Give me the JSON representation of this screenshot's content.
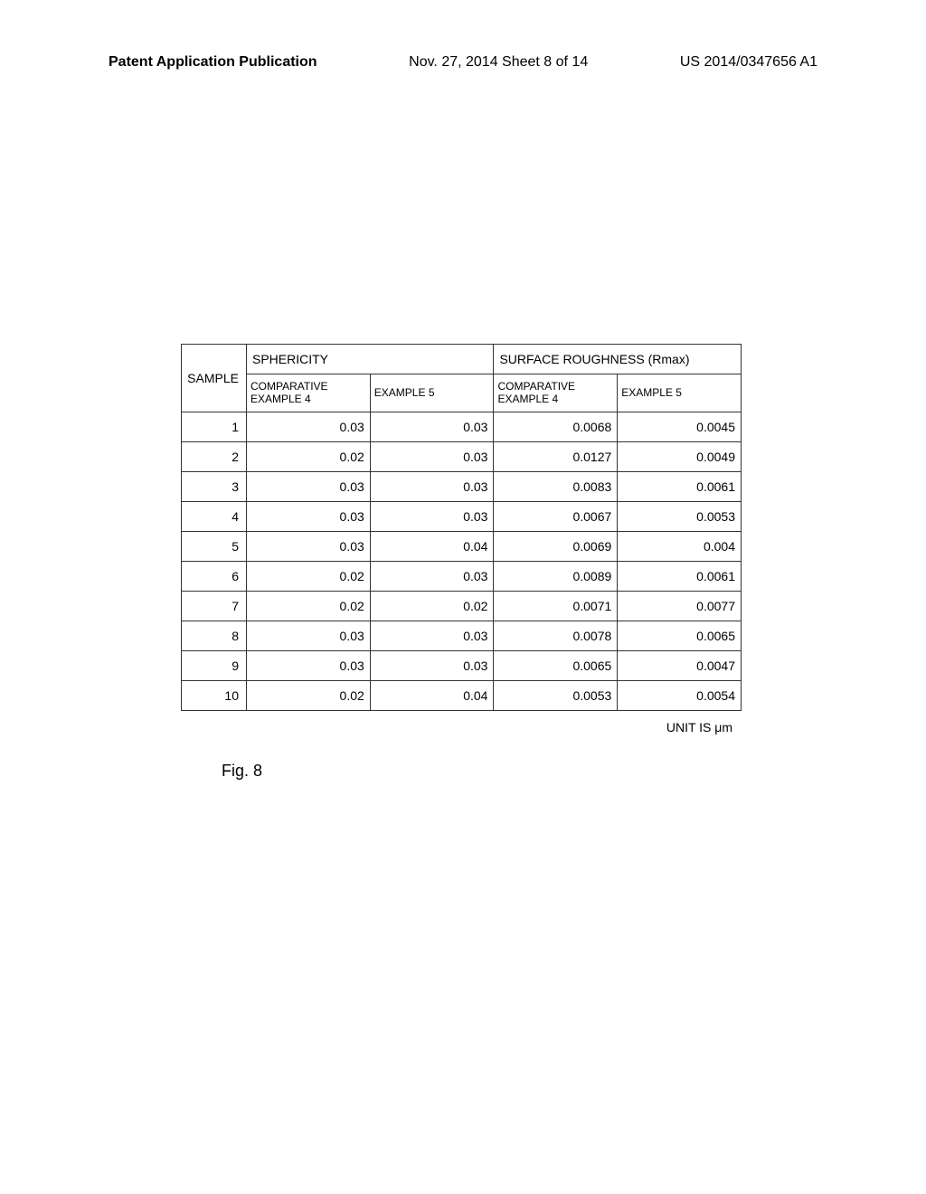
{
  "header": {
    "left": "Patent Application Publication",
    "center": "Nov. 27, 2014  Sheet 8 of 14",
    "right": "US 2014/0347656 A1"
  },
  "table": {
    "columns": {
      "sample_label": "SAMPLE",
      "group1_label": "SPHERICITY",
      "group2_label": "SURFACE ROUGHNESS (Rmax)",
      "sub1": "COMPARATIVE EXAMPLE 4",
      "sub2": "EXAMPLE 5",
      "sub3": "COMPARATIVE EXAMPLE 4",
      "sub4": "EXAMPLE 5"
    },
    "rows": [
      {
        "sample": "1",
        "c1": "0.03",
        "c2": "0.03",
        "c3": "0.0068",
        "c4": "0.0045"
      },
      {
        "sample": "2",
        "c1": "0.02",
        "c2": "0.03",
        "c3": "0.0127",
        "c4": "0.0049"
      },
      {
        "sample": "3",
        "c1": "0.03",
        "c2": "0.03",
        "c3": "0.0083",
        "c4": "0.0061"
      },
      {
        "sample": "4",
        "c1": "0.03",
        "c2": "0.03",
        "c3": "0.0067",
        "c4": "0.0053"
      },
      {
        "sample": "5",
        "c1": "0.03",
        "c2": "0.04",
        "c3": "0.0069",
        "c4": "0.004"
      },
      {
        "sample": "6",
        "c1": "0.02",
        "c2": "0.03",
        "c3": "0.0089",
        "c4": "0.0061"
      },
      {
        "sample": "7",
        "c1": "0.02",
        "c2": "0.02",
        "c3": "0.0071",
        "c4": "0.0077"
      },
      {
        "sample": "8",
        "c1": "0.03",
        "c2": "0.03",
        "c3": "0.0078",
        "c4": "0.0065"
      },
      {
        "sample": "9",
        "c1": "0.03",
        "c2": "0.03",
        "c3": "0.0065",
        "c4": "0.0047"
      },
      {
        "sample": "10",
        "c1": "0.02",
        "c2": "0.04",
        "c3": "0.0053",
        "c4": "0.0054"
      }
    ]
  },
  "unit_label": "UNIT IS μm",
  "figure_label": "Fig. 8",
  "styling": {
    "background_color": "#ffffff",
    "border_color": "#333333",
    "text_color": "#000000",
    "header_fontsize": 16,
    "table_fontsize": 14,
    "subheader_fontsize": 12,
    "figure_fontsize": 18
  }
}
